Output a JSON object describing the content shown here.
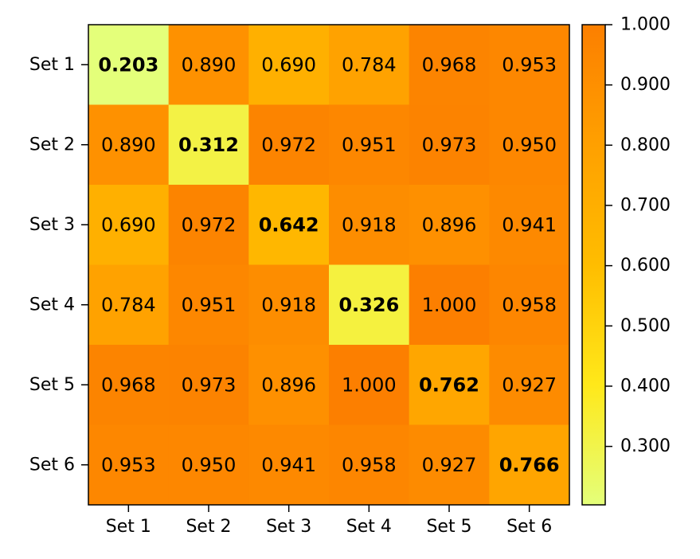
{
  "chart_data": {
    "type": "heatmap",
    "title": "",
    "xlabel": "",
    "ylabel": "",
    "x_categories": [
      "Set 1",
      "Set 2",
      "Set 3",
      "Set 4",
      "Set 5",
      "Set 6"
    ],
    "y_categories": [
      "Set 1",
      "Set 2",
      "Set 3",
      "Set 4",
      "Set 5",
      "Set 6"
    ],
    "values": [
      [
        0.203,
        0.89,
        0.69,
        0.784,
        0.968,
        0.953
      ],
      [
        0.89,
        0.312,
        0.972,
        0.951,
        0.973,
        0.95
      ],
      [
        0.69,
        0.972,
        0.642,
        0.918,
        0.896,
        0.941
      ],
      [
        0.784,
        0.951,
        0.918,
        0.326,
        1.0,
        0.958
      ],
      [
        0.968,
        0.973,
        0.896,
        1.0,
        0.762,
        0.927
      ],
      [
        0.953,
        0.95,
        0.941,
        0.958,
        0.927,
        0.766
      ]
    ],
    "value_format": "0.000",
    "diagonal_bold": true,
    "colorbar": {
      "colormap": "Wistia",
      "colors": [
        "#e4ff7a",
        "#ffe81a",
        "#ffbd00",
        "#ffa000",
        "#fc7f00"
      ],
      "vmin": 0.203,
      "vmax": 1.0,
      "ticks": [
        0.3,
        0.4,
        0.5,
        0.6,
        0.7,
        0.8,
        0.9,
        1.0
      ],
      "tick_labels": [
        "0.300",
        "0.400",
        "0.500",
        "0.600",
        "0.700",
        "0.800",
        "0.900",
        "1.000"
      ]
    },
    "grid": false
  }
}
